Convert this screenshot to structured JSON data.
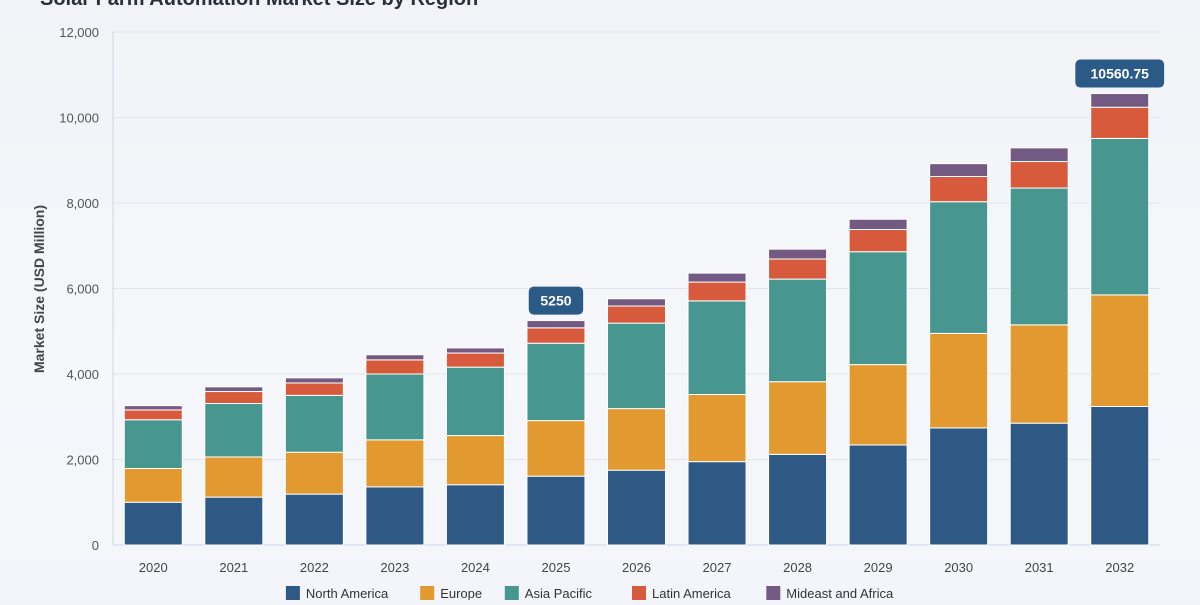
{
  "chart_data": {
    "type": "bar",
    "stacked": true,
    "title": "Solar Farm Automation Market Size by Region",
    "xlabel": "",
    "ylabel": "Market Size (USD Million)",
    "ylim": [
      0,
      12000
    ],
    "yticks": [
      0,
      2000,
      4000,
      6000,
      8000,
      10000,
      12000
    ],
    "ytick_labels": [
      "0",
      "2,000",
      "4,000",
      "6,000",
      "8,000",
      "10,000",
      "12,000"
    ],
    "grid": true,
    "legend_position": "bottom",
    "categories": [
      "2020",
      "2021",
      "2022",
      "2023",
      "2024",
      "2025",
      "2026",
      "2027",
      "2028",
      "2029",
      "2030",
      "2031",
      "2032"
    ],
    "series": [
      {
        "name": "North America",
        "color": "#2e5984",
        "values": [
          1000,
          1120,
          1190,
          1360,
          1410,
          1610,
          1750,
          1950,
          2120,
          2340,
          2740,
          2850,
          3240
        ]
      },
      {
        "name": "Europe",
        "color": "#e29a30",
        "values": [
          790,
          940,
          980,
          1100,
          1150,
          1300,
          1440,
          1570,
          1700,
          1880,
          2210,
          2300,
          2610
        ]
      },
      {
        "name": "Asia Pacific",
        "color": "#47968f",
        "values": [
          1140,
          1250,
          1330,
          1540,
          1600,
          1810,
          2000,
          2190,
          2400,
          2640,
          3080,
          3200,
          3660
        ]
      },
      {
        "name": "Latin America",
        "color": "#d85a3c",
        "values": [
          230,
          280,
          290,
          330,
          330,
          360,
          400,
          440,
          470,
          520,
          590,
          620,
          730
        ]
      },
      {
        "name": "Mideast and Africa",
        "color": "#735a82",
        "values": [
          100,
          110,
          120,
          120,
          120,
          170,
          170,
          210,
          230,
          240,
          300,
          320,
          320.75
        ]
      }
    ],
    "annotations": [
      {
        "category": "2025",
        "text": "5250"
      },
      {
        "category": "2032",
        "text": "10560.75"
      }
    ],
    "annotation_color": "#2c5a87"
  }
}
